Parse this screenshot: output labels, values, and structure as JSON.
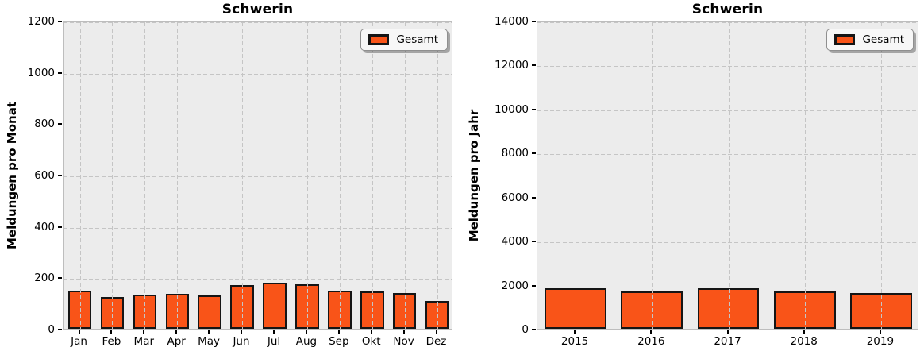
{
  "figure_background": "#ffffff",
  "palette": {
    "bar_fill": "#F95418",
    "bar_edge": "#151515",
    "plot_background": "#ECECEC",
    "grid_color": "#C5C5C5",
    "spine_color": "#BDBDBD",
    "tick_color": "#000000"
  },
  "chart_data": [
    {
      "type": "bar",
      "title": "Schwerin",
      "xlabel": "",
      "ylabel": "Meldungen pro Monat",
      "legend": [
        "Gesamt"
      ],
      "legend_position": "upper right",
      "categories": [
        "Jan",
        "Feb",
        "Mar",
        "Apr",
        "May",
        "Jun",
        "Jul",
        "Aug",
        "Sep",
        "Okt",
        "Nov",
        "Dez"
      ],
      "values": [
        150,
        123,
        133,
        137,
        131,
        170,
        181,
        172,
        149,
        147,
        139,
        107
      ],
      "ylim": [
        0,
        1200
      ],
      "yticks": [
        0,
        200,
        400,
        600,
        800,
        1000,
        1200
      ],
      "grid": "dashed, drawn over bars",
      "bar_rel_width": 0.72,
      "bar_color": "#F95418",
      "bar_edge_color": "#151515"
    },
    {
      "type": "bar",
      "title": "Schwerin",
      "xlabel": "",
      "ylabel": "Meldungen pro Jahr",
      "legend": [
        "Gesamt"
      ],
      "legend_position": "upper right",
      "categories": [
        "2015",
        "2016",
        "2017",
        "2018",
        "2019"
      ],
      "values": [
        1860,
        1680,
        1860,
        1700,
        1640
      ],
      "ylim": [
        0,
        14000
      ],
      "yticks": [
        0,
        2000,
        4000,
        6000,
        8000,
        10000,
        12000,
        14000
      ],
      "grid": "dashed, drawn over bars",
      "bar_rel_width": 0.81,
      "bar_color": "#F95418",
      "bar_edge_color": "#151515"
    }
  ]
}
